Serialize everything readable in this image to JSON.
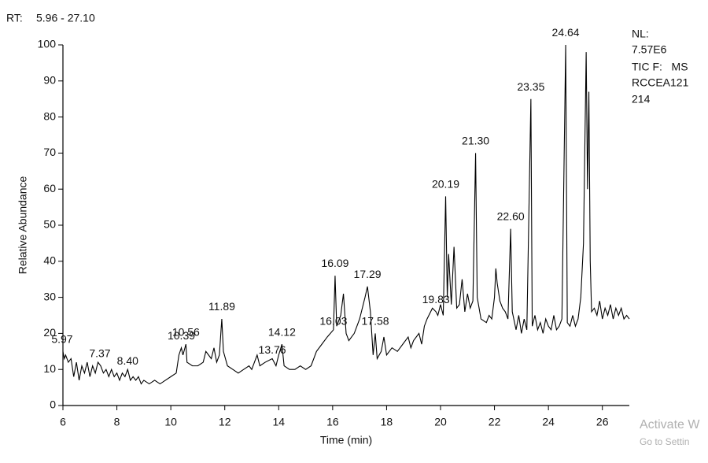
{
  "chart_data": {
    "type": "line",
    "header": {
      "label": "RT:",
      "range": "5.96 - 27.10",
      "range_color": "#1a1aa0"
    },
    "info": [
      "NL:",
      "7.57E6",
      "TIC F:   MS",
      "RCCEA121",
      "214"
    ],
    "watermark": [
      "Activate W",
      "Go to Settin"
    ],
    "xlabel": "Time (min)",
    "ylabel": "Relative Abundance",
    "xlim": [
      6,
      27
    ],
    "ylim": [
      0,
      100
    ],
    "xticks": [
      6,
      8,
      10,
      12,
      14,
      16,
      18,
      20,
      22,
      24,
      26
    ],
    "yticks": [
      0,
      10,
      20,
      30,
      40,
      50,
      60,
      70,
      80,
      90,
      100
    ],
    "color": "#000000",
    "x": [
      6.0,
      6.05,
      6.1,
      6.2,
      6.3,
      6.4,
      6.5,
      6.6,
      6.7,
      6.8,
      6.9,
      7.0,
      7.1,
      7.2,
      7.3,
      7.4,
      7.5,
      7.6,
      7.7,
      7.8,
      7.9,
      8.0,
      8.1,
      8.2,
      8.3,
      8.4,
      8.5,
      8.6,
      8.7,
      8.8,
      8.9,
      9.0,
      9.2,
      9.4,
      9.6,
      9.8,
      10.0,
      10.2,
      10.3,
      10.39,
      10.45,
      10.56,
      10.6,
      10.8,
      11.0,
      11.2,
      11.3,
      11.4,
      11.5,
      11.6,
      11.7,
      11.8,
      11.89,
      11.95,
      12.1,
      12.3,
      12.5,
      12.7,
      12.9,
      13.0,
      13.1,
      13.2,
      13.3,
      13.5,
      13.76,
      13.9,
      14.0,
      14.12,
      14.2,
      14.4,
      14.6,
      14.8,
      15.0,
      15.2,
      15.4,
      15.6,
      15.8,
      16.03,
      16.09,
      16.15,
      16.3,
      16.4,
      16.5,
      16.6,
      16.8,
      17.0,
      17.2,
      17.29,
      17.4,
      17.5,
      17.58,
      17.65,
      17.8,
      17.9,
      18.0,
      18.2,
      18.4,
      18.6,
      18.8,
      18.9,
      19.0,
      19.2,
      19.3,
      19.4,
      19.5,
      19.7,
      19.83,
      19.9,
      20.0,
      20.1,
      20.19,
      20.25,
      20.3,
      20.4,
      20.5,
      20.6,
      20.7,
      20.8,
      20.9,
      21.0,
      21.1,
      21.2,
      21.3,
      21.36,
      21.5,
      21.7,
      21.8,
      21.9,
      22.0,
      22.05,
      22.1,
      22.2,
      22.3,
      22.4,
      22.5,
      22.6,
      22.66,
      22.8,
      22.9,
      23.0,
      23.1,
      23.2,
      23.35,
      23.4,
      23.5,
      23.6,
      23.7,
      23.8,
      23.9,
      24.0,
      24.1,
      24.2,
      24.3,
      24.4,
      24.5,
      24.64,
      24.7,
      24.8,
      24.9,
      25.0,
      25.1,
      25.2,
      25.3,
      25.4,
      25.45,
      25.5,
      25.55,
      25.6,
      25.7,
      25.8,
      25.9,
      26.0,
      26.1,
      26.2,
      26.3,
      26.4,
      26.5,
      26.6,
      26.7,
      26.8,
      26.9,
      27.0
    ],
    "values": [
      15,
      13,
      14,
      12,
      13,
      8,
      12,
      7,
      11,
      9,
      12,
      8,
      11,
      9,
      12,
      11,
      9,
      10,
      8,
      10,
      8,
      9,
      7,
      9,
      8,
      10,
      7,
      8,
      7,
      8,
      6,
      7,
      6,
      7,
      6,
      7,
      8,
      9,
      14,
      16,
      14,
      17,
      12,
      11,
      11,
      12,
      15,
      14,
      13,
      16,
      12,
      14,
      24,
      15,
      11,
      10,
      9,
      10,
      11,
      10,
      12,
      14,
      11,
      12,
      13,
      11,
      14,
      17,
      11,
      10,
      10,
      11,
      10,
      11,
      15,
      17,
      19,
      21,
      36,
      22,
      25,
      31,
      20,
      18,
      20,
      24,
      30,
      33,
      26,
      14,
      20,
      13,
      15,
      19,
      14,
      16,
      15,
      17,
      19,
      16,
      18,
      20,
      17,
      22,
      24,
      27,
      26,
      25,
      28,
      25,
      58,
      30,
      42,
      28,
      44,
      27,
      28,
      35,
      26,
      31,
      27,
      29,
      70,
      30,
      24,
      23,
      25,
      24,
      30,
      38,
      34,
      29,
      27,
      26,
      24,
      49,
      26,
      21,
      25,
      20,
      24,
      21,
      85,
      22,
      25,
      21,
      23,
      20,
      24,
      22,
      21,
      25,
      21,
      22,
      24,
      100,
      23,
      22,
      25,
      22,
      24,
      30,
      45,
      98,
      60,
      87,
      40,
      26,
      27,
      25,
      29,
      24,
      27,
      25,
      28,
      24,
      27,
      25,
      27,
      24,
      25,
      24
    ],
    "peaks": [
      {
        "label": "5.97",
        "x": 5.97,
        "y": 16
      },
      {
        "label": "7.37",
        "x": 7.37,
        "y": 12
      },
      {
        "label": "8.40",
        "x": 8.4,
        "y": 10
      },
      {
        "label": "10.39",
        "x": 10.39,
        "y": 17
      },
      {
        "label": "10.56",
        "x": 10.56,
        "y": 18
      },
      {
        "label": "11.89",
        "x": 11.89,
        "y": 25
      },
      {
        "label": "13.76",
        "x": 13.76,
        "y": 13
      },
      {
        "label": "14.12",
        "x": 14.12,
        "y": 18
      },
      {
        "label": "16.03",
        "x": 16.03,
        "y": 21
      },
      {
        "label": "16.09",
        "x": 16.09,
        "y": 37
      },
      {
        "label": "17.29",
        "x": 17.29,
        "y": 34
      },
      {
        "label": "17.58",
        "x": 17.58,
        "y": 21
      },
      {
        "label": "19.83",
        "x": 19.83,
        "y": 27
      },
      {
        "label": "20.19",
        "x": 20.19,
        "y": 59
      },
      {
        "label": "21.30",
        "x": 21.3,
        "y": 71
      },
      {
        "label": "22.60",
        "x": 22.6,
        "y": 50
      },
      {
        "label": "23.35",
        "x": 23.35,
        "y": 86
      },
      {
        "label": "24.64",
        "x": 24.64,
        "y": 101
      }
    ]
  }
}
